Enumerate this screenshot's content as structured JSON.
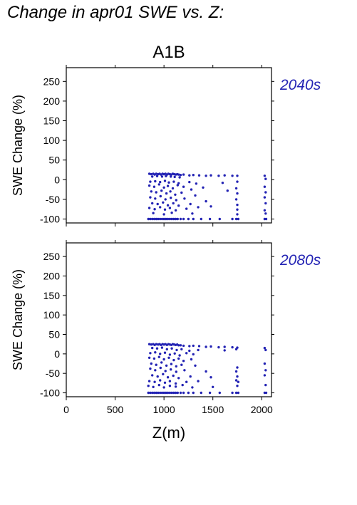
{
  "figure": {
    "title": "Change in apr01 SWE vs. Z:",
    "scenario": "A1B",
    "xlabel": "Z(m)",
    "point_color": "#2323b4"
  },
  "chart_data": [
    {
      "type": "scatter",
      "period_label": "2040s",
      "ylabel": "SWE Change (%)",
      "xlabel": "",
      "xlim": [
        0,
        2100
      ],
      "ylim": [
        -110,
        285
      ],
      "xticks": [
        0,
        500,
        1000,
        1500,
        2000
      ],
      "yticks": [
        -100,
        -50,
        0,
        50,
        100,
        150,
        200,
        250
      ],
      "grid": false,
      "series": [
        {
          "color": "#2323b4",
          "points": [
            [
              850,
              15
            ],
            [
              870,
              14
            ],
            [
              890,
              15
            ],
            [
              905,
              13
            ],
            [
              920,
              15
            ],
            [
              940,
              14
            ],
            [
              955,
              15
            ],
            [
              970,
              13
            ],
            [
              985,
              15
            ],
            [
              1000,
              14
            ],
            [
              1015,
              15
            ],
            [
              1030,
              13
            ],
            [
              1045,
              15
            ],
            [
              1060,
              14
            ],
            [
              1075,
              13
            ],
            [
              1090,
              15
            ],
            [
              1105,
              14
            ],
            [
              1120,
              13
            ],
            [
              1135,
              14
            ],
            [
              1150,
              13
            ],
            [
              1170,
              12
            ],
            [
              1200,
              13
            ],
            [
              1260,
              11
            ],
            [
              1300,
              12
            ],
            [
              1360,
              11
            ],
            [
              1430,
              10
            ],
            [
              1480,
              11
            ],
            [
              1560,
              10
            ],
            [
              1620,
              11
            ],
            [
              1700,
              10
            ],
            [
              1750,
              10
            ],
            [
              2030,
              10
            ],
            [
              880,
              8
            ],
            [
              930,
              9
            ],
            [
              980,
              8
            ],
            [
              1020,
              9
            ],
            [
              1070,
              8
            ],
            [
              1110,
              7
            ],
            [
              1160,
              6
            ],
            [
              2040,
              2
            ],
            [
              860,
              -5
            ],
            [
              910,
              -4
            ],
            [
              960,
              -6
            ],
            [
              1010,
              -3
            ],
            [
              1050,
              -7
            ],
            [
              1100,
              -5
            ],
            [
              1150,
              -9
            ],
            [
              1260,
              -6
            ],
            [
              1330,
              -10
            ],
            [
              1600,
              -8
            ],
            [
              1750,
              -5
            ],
            [
              850,
              -15
            ],
            [
              900,
              -18
            ],
            [
              950,
              -12
            ],
            [
              1000,
              -20
            ],
            [
              1040,
              -16
            ],
            [
              1090,
              -22
            ],
            [
              1140,
              -14
            ],
            [
              1200,
              -18
            ],
            [
              1280,
              -25
            ],
            [
              1400,
              -20
            ],
            [
              1650,
              -28
            ],
            [
              1740,
              -22
            ],
            [
              2030,
              -18
            ],
            [
              870,
              -30
            ],
            [
              920,
              -32
            ],
            [
              975,
              -28
            ],
            [
              1025,
              -35
            ],
            [
              1065,
              -30
            ],
            [
              1115,
              -38
            ],
            [
              1180,
              -33
            ],
            [
              1320,
              -40
            ],
            [
              1750,
              -35
            ],
            [
              2040,
              -32
            ],
            [
              860,
              -45
            ],
            [
              910,
              -48
            ],
            [
              965,
              -42
            ],
            [
              1015,
              -50
            ],
            [
              1070,
              -46
            ],
            [
              1125,
              -52
            ],
            [
              1210,
              -48
            ],
            [
              1430,
              -55
            ],
            [
              1740,
              -50
            ],
            [
              2030,
              -45
            ],
            [
              880,
              -60
            ],
            [
              935,
              -62
            ],
            [
              990,
              -58
            ],
            [
              1040,
              -65
            ],
            [
              1095,
              -60
            ],
            [
              1150,
              -66
            ],
            [
              1270,
              -62
            ],
            [
              1480,
              -68
            ],
            [
              1750,
              -64
            ],
            [
              2040,
              -60
            ],
            [
              850,
              -72
            ],
            [
              905,
              -75
            ],
            [
              960,
              -70
            ],
            [
              1010,
              -76
            ],
            [
              1060,
              -72
            ],
            [
              1120,
              -78
            ],
            [
              1230,
              -74
            ],
            [
              1350,
              -70
            ],
            [
              1750,
              -76
            ],
            [
              2030,
              -78
            ],
            [
              890,
              -85
            ],
            [
              1000,
              -88
            ],
            [
              1080,
              -84
            ],
            [
              1290,
              -86
            ],
            [
              1750,
              -88
            ],
            [
              2040,
              -86
            ],
            [
              840,
              -100
            ],
            [
              860,
              -100
            ],
            [
              880,
              -100
            ],
            [
              900,
              -100
            ],
            [
              920,
              -100
            ],
            [
              940,
              -100
            ],
            [
              960,
              -100
            ],
            [
              980,
              -100
            ],
            [
              1000,
              -100
            ],
            [
              1020,
              -100
            ],
            [
              1040,
              -100
            ],
            [
              1060,
              -100
            ],
            [
              1080,
              -100
            ],
            [
              1100,
              -100
            ],
            [
              1120,
              -100
            ],
            [
              1140,
              -100
            ],
            [
              1170,
              -100
            ],
            [
              1200,
              -100
            ],
            [
              1250,
              -100
            ],
            [
              1300,
              -100
            ],
            [
              1380,
              -100
            ],
            [
              1470,
              -100
            ],
            [
              1570,
              -100
            ],
            [
              1700,
              -100
            ],
            [
              1740,
              -100
            ],
            [
              1760,
              -100
            ],
            [
              2030,
              -100
            ],
            [
              2045,
              -100
            ]
          ]
        }
      ]
    },
    {
      "type": "scatter",
      "period_label": "2080s",
      "ylabel": "SWE Change (%)",
      "xlabel": "Z(m)",
      "xlim": [
        0,
        2100
      ],
      "ylim": [
        -110,
        285
      ],
      "xticks": [
        0,
        500,
        1000,
        1500,
        2000
      ],
      "yticks": [
        -100,
        -50,
        0,
        50,
        100,
        150,
        200,
        250
      ],
      "grid": false,
      "series": [
        {
          "color": "#2323b4",
          "points": [
            [
              850,
              25
            ],
            [
              870,
              24
            ],
            [
              890,
              25
            ],
            [
              905,
              23
            ],
            [
              920,
              25
            ],
            [
              940,
              24
            ],
            [
              955,
              25
            ],
            [
              970,
              23
            ],
            [
              985,
              25
            ],
            [
              1000,
              24
            ],
            [
              1015,
              25
            ],
            [
              1030,
              23
            ],
            [
              1045,
              25
            ],
            [
              1060,
              24
            ],
            [
              1075,
              23
            ],
            [
              1090,
              25
            ],
            [
              1105,
              24
            ],
            [
              1120,
              23
            ],
            [
              1135,
              24
            ],
            [
              1150,
              22
            ],
            [
              1170,
              22
            ],
            [
              1200,
              21
            ],
            [
              1260,
              20
            ],
            [
              1300,
              21
            ],
            [
              1360,
              20
            ],
            [
              1430,
              18
            ],
            [
              1480,
              19
            ],
            [
              1560,
              17
            ],
            [
              1620,
              18
            ],
            [
              1700,
              17
            ],
            [
              1750,
              16
            ],
            [
              2030,
              15
            ],
            [
              880,
              15
            ],
            [
              930,
              14
            ],
            [
              980,
              16
            ],
            [
              1030,
              12
            ],
            [
              1080,
              14
            ],
            [
              1130,
              10
            ],
            [
              1180,
              12
            ],
            [
              1260,
              8
            ],
            [
              1350,
              10
            ],
            [
              1620,
              9
            ],
            [
              1740,
              12
            ],
            [
              2040,
              10
            ],
            [
              860,
              2
            ],
            [
              910,
              4
            ],
            [
              960,
              0
            ],
            [
              1010,
              3
            ],
            [
              1060,
              -2
            ],
            [
              1110,
              1
            ],
            [
              1160,
              -4
            ],
            [
              1230,
              2
            ],
            [
              1300,
              -1
            ],
            [
              850,
              -10
            ],
            [
              900,
              -12
            ],
            [
              950,
              -8
            ],
            [
              1000,
              -14
            ],
            [
              1050,
              -10
            ],
            [
              1100,
              -16
            ],
            [
              1150,
              -12
            ],
            [
              1200,
              -18
            ],
            [
              1280,
              -14
            ],
            [
              2030,
              -25
            ],
            [
              870,
              -25
            ],
            [
              920,
              -28
            ],
            [
              975,
              -22
            ],
            [
              1025,
              -30
            ],
            [
              1075,
              -26
            ],
            [
              1125,
              -32
            ],
            [
              1180,
              -28
            ],
            [
              1320,
              -30
            ],
            [
              1750,
              -35
            ],
            [
              860,
              -38
            ],
            [
              910,
              -42
            ],
            [
              965,
              -36
            ],
            [
              1015,
              -44
            ],
            [
              1070,
              -40
            ],
            [
              1125,
              -46
            ],
            [
              1210,
              -42
            ],
            [
              1430,
              -45
            ],
            [
              1740,
              -45
            ],
            [
              2040,
              -42
            ],
            [
              880,
              -55
            ],
            [
              935,
              -58
            ],
            [
              990,
              -52
            ],
            [
              1040,
              -60
            ],
            [
              1095,
              -56
            ],
            [
              1150,
              -62
            ],
            [
              1270,
              -58
            ],
            [
              1480,
              -60
            ],
            [
              1750,
              -58
            ],
            [
              2030,
              -55
            ],
            [
              850,
              -70
            ],
            [
              905,
              -72
            ],
            [
              960,
              -68
            ],
            [
              1010,
              -74
            ],
            [
              1060,
              -70
            ],
            [
              1120,
              -76
            ],
            [
              1230,
              -72
            ],
            [
              1350,
              -70
            ],
            [
              1740,
              -68
            ],
            [
              1760,
              -72
            ],
            [
              840,
              -82
            ],
            [
              890,
              -85
            ],
            [
              950,
              -80
            ],
            [
              1000,
              -86
            ],
            [
              1060,
              -82
            ],
            [
              1120,
              -84
            ],
            [
              1190,
              -80
            ],
            [
              1290,
              -86
            ],
            [
              1500,
              -85
            ],
            [
              1750,
              -82
            ],
            [
              2040,
              -80
            ],
            [
              840,
              -100
            ],
            [
              860,
              -100
            ],
            [
              880,
              -100
            ],
            [
              900,
              -100
            ],
            [
              920,
              -100
            ],
            [
              940,
              -100
            ],
            [
              960,
              -100
            ],
            [
              980,
              -100
            ],
            [
              1000,
              -100
            ],
            [
              1020,
              -100
            ],
            [
              1040,
              -100
            ],
            [
              1060,
              -100
            ],
            [
              1080,
              -100
            ],
            [
              1100,
              -100
            ],
            [
              1120,
              -100
            ],
            [
              1140,
              -100
            ],
            [
              1170,
              -100
            ],
            [
              1200,
              -100
            ],
            [
              1250,
              -100
            ],
            [
              1300,
              -100
            ],
            [
              1380,
              -100
            ],
            [
              1470,
              -100
            ],
            [
              1570,
              -100
            ],
            [
              1700,
              -100
            ],
            [
              1740,
              -100
            ],
            [
              1760,
              -100
            ],
            [
              2030,
              -100
            ],
            [
              2045,
              -100
            ]
          ]
        }
      ]
    }
  ]
}
